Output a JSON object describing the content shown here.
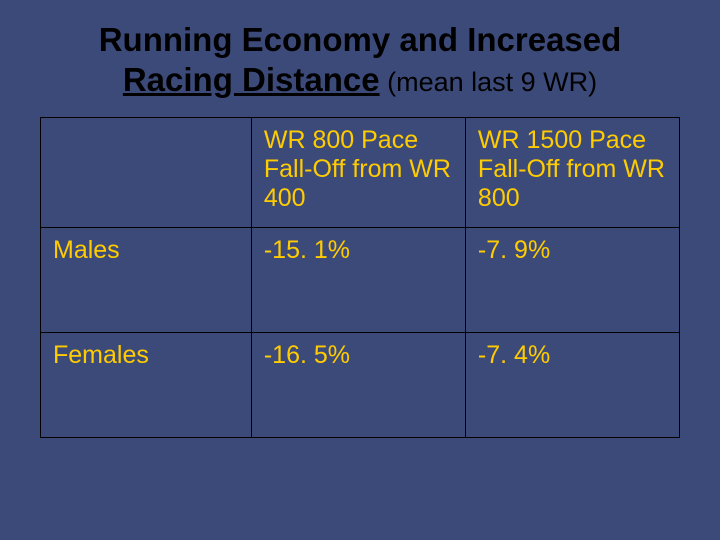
{
  "colors": {
    "slide_bg": "#3c4a7a",
    "title_text": "#000000",
    "table_text": "#ffcc00",
    "table_border": "#000000"
  },
  "typography": {
    "title_main_fontsize": 33,
    "title_sub_fontsize": 27,
    "table_fontsize": 25
  },
  "title": {
    "line1": "Running Economy and Increased",
    "line2_underlined": "Racing Distance",
    "line2_sub": " (mean last 9 WR)"
  },
  "table": {
    "columns": [
      "",
      "WR 800 Pace Fall-Off from WR 400",
      "WR 1500 Pace Fall-Off from WR 800"
    ],
    "rows": [
      [
        "Males",
        "-15. 1%",
        "-7. 9%"
      ],
      [
        "Females",
        "-16. 5%",
        "-7. 4%"
      ]
    ]
  }
}
